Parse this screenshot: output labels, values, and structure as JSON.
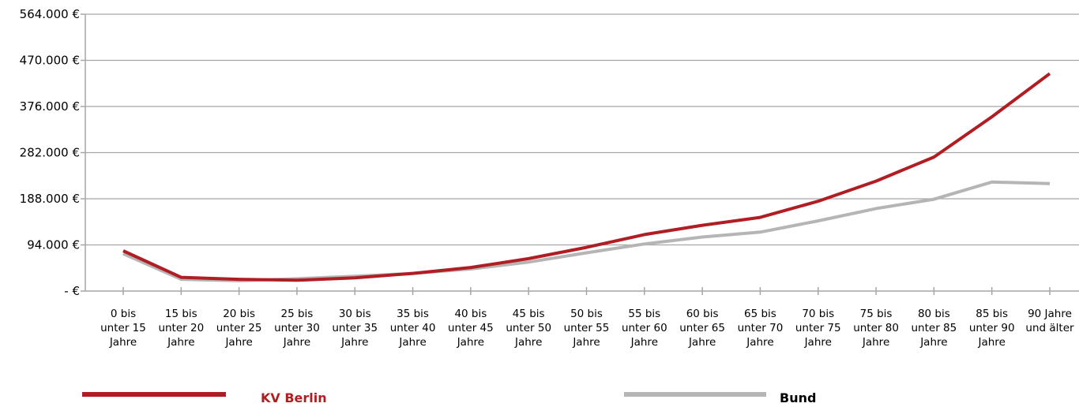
{
  "chart_data": {
    "type": "line",
    "title": "",
    "xlabel": "",
    "ylabel": "",
    "ylim": [
      0,
      564000
    ],
    "y_ticks": [
      0,
      94000,
      188000,
      282000,
      376000,
      470000,
      564000
    ],
    "y_tick_labels": [
      "- €",
      "94.000 €",
      "188.000 €",
      "282.000 €",
      "376.000 €",
      "470.000 €",
      "564.000 €"
    ],
    "grid": "horizontal",
    "legend_position": "bottom",
    "categories": [
      [
        "0 bis",
        "unter 15",
        "Jahre"
      ],
      [
        "15 bis",
        "unter 20",
        "Jahre"
      ],
      [
        "20 bis",
        "unter 25",
        "Jahre"
      ],
      [
        "25 bis",
        "unter 30",
        "Jahre"
      ],
      [
        "30 bis",
        "unter 35",
        "Jahre"
      ],
      [
        "35 bis",
        "unter 40",
        "Jahre"
      ],
      [
        "40 bis",
        "unter 45",
        "Jahre"
      ],
      [
        "45 bis",
        "unter 50",
        "Jahre"
      ],
      [
        "50 bis",
        "unter 55",
        "Jahre"
      ],
      [
        "55 bis",
        "unter 60",
        "Jahre"
      ],
      [
        "60 bis",
        "unter 65",
        "Jahre"
      ],
      [
        "65 bis",
        "unter 70",
        "Jahre"
      ],
      [
        "70 bis",
        "unter 75",
        "Jahre"
      ],
      [
        "75 bis",
        "unter 80",
        "Jahre"
      ],
      [
        "80 bis",
        "unter 85",
        "Jahre"
      ],
      [
        "85 bis",
        "unter 90",
        "Jahre"
      ],
      [
        "90 Jahre",
        "und älter"
      ]
    ],
    "series": [
      {
        "name": "KV Berlin",
        "color": "#b01e23",
        "values": [
          82000,
          28000,
          24000,
          22000,
          27000,
          36000,
          48000,
          66000,
          89000,
          115000,
          134000,
          150000,
          183000,
          224000,
          273000,
          355000,
          443000
        ]
      },
      {
        "name": "Bund",
        "color": "#b5b5b5",
        "values": [
          76000,
          24000,
          21000,
          25000,
          30000,
          36000,
          45000,
          59000,
          78000,
          96000,
          110000,
          120000,
          143000,
          168000,
          187000,
          222000,
          219000
        ]
      }
    ]
  }
}
